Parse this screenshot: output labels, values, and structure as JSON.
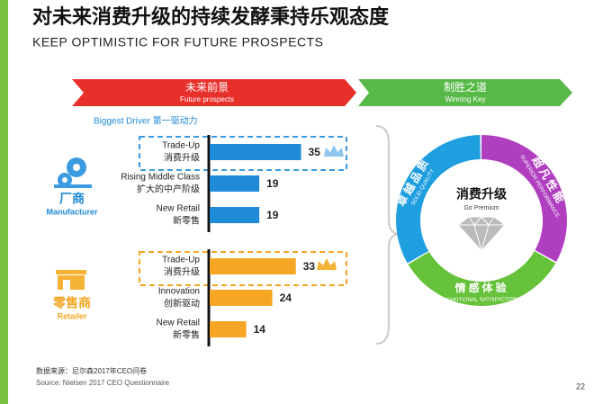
{
  "title": "对未来消费升级的持续发酵秉持乐观态度",
  "subtitle": "KEEP OPTIMISTIC FOR FUTURE PROSPECTS",
  "banners": [
    {
      "zh": "未来前景",
      "en": "Future prospects"
    },
    {
      "zh": "制胜之道",
      "en": "Winning Key"
    }
  ],
  "driver_label": "Biggest Driver 第一驱动力",
  "chart_data": [
    {
      "type": "bar",
      "name": "厂商",
      "name_en": "Manufacturer",
      "categories": [
        [
          "Trade-Up",
          "消费升级"
        ],
        [
          "Rising Middle Class",
          "扩大的中产阶级"
        ],
        [
          "New Retail",
          "新零售"
        ]
      ],
      "values": [
        35,
        19,
        19
      ],
      "color": "#1f8ad6"
    },
    {
      "type": "bar",
      "name": "零售商",
      "name_en": "Retailer",
      "categories": [
        [
          "Trade-Up",
          "消费升级"
        ],
        [
          "Innovation",
          "创新驱动"
        ],
        [
          "New Retail",
          "新零售"
        ]
      ],
      "values": [
        33,
        24,
        14
      ],
      "color": "#f5a623"
    }
  ],
  "donut": {
    "center_zh": "消费升级",
    "center_en": "Go Premium",
    "segments": [
      {
        "zh": "卓越品质",
        "en": "SOLID QUALITY",
        "color": "#1f9ee0"
      },
      {
        "zh": "超凡性能",
        "en": "SUPERIOR PERFORMANCE",
        "color": "#b03fc0"
      },
      {
        "zh": "情感体验",
        "en": "EMOTIONAL SATISFACTION",
        "color": "#66c23a"
      }
    ]
  },
  "source_zh": "数据来源：尼尔森2017年CEO问卷",
  "source_en": "Source: Nielsen 2017 CEO Questionnaire",
  "page_number": 22
}
